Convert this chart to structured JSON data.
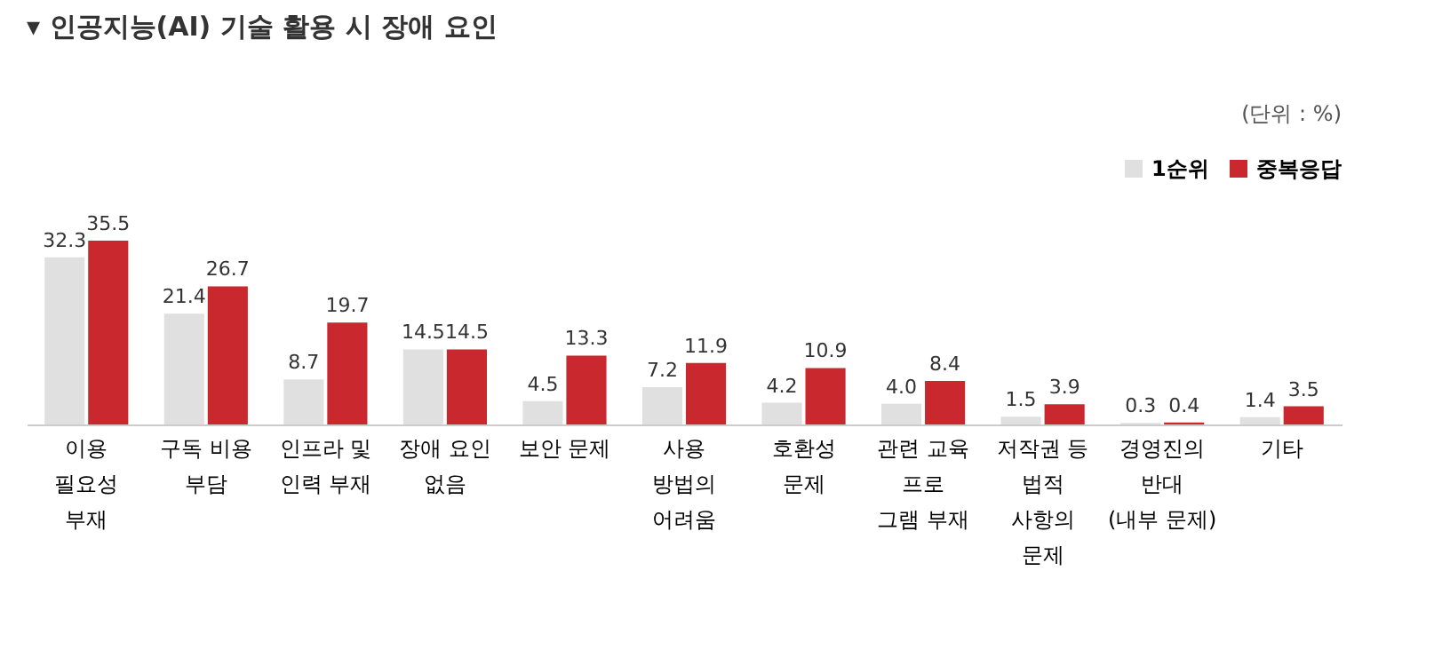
{
  "chart_data": {
    "type": "bar",
    "title": "▾ 인공지능(AI) 기술 활용 시 장애 요인",
    "annotations": [
      "(단위 : %)"
    ],
    "categories": [
      "이용\n필요성\n부재",
      "구독 비용\n부담",
      "인프라 및\n인력 부재",
      "장애 요인\n없음",
      "보안 문제",
      "사용\n방법의\n어려움",
      "호환성\n문제",
      "관련 교육\n프로\n그램 부재",
      "저작권 등\n법적\n사항의\n문제",
      "경영진의\n반대\n(내부 문제)",
      "기타"
    ],
    "series": [
      {
        "name": "1순위",
        "color": "#e0e0e0",
        "values": [
          32.3,
          21.4,
          8.7,
          14.5,
          4.5,
          7.2,
          4.2,
          4.0,
          1.5,
          0.3,
          1.4
        ],
        "value_labels": [
          "32.3",
          "21.4",
          "8.7",
          "14.5",
          "4.5",
          "7.2",
          "4.2",
          "4.0",
          "1.5",
          "0.3",
          "1.4"
        ]
      },
      {
        "name": "중복응답",
        "color": "#c8282e",
        "values": [
          35.5,
          26.7,
          19.7,
          14.5,
          13.3,
          11.9,
          10.9,
          8.4,
          3.9,
          0.4,
          3.5
        ],
        "value_labels": [
          "35.5",
          "26.7",
          "19.7",
          "14.5",
          "13.3",
          "11.9",
          "10.9",
          "8.4",
          "3.9",
          "0.4",
          "3.5"
        ]
      }
    ],
    "legend": "top right"
  }
}
